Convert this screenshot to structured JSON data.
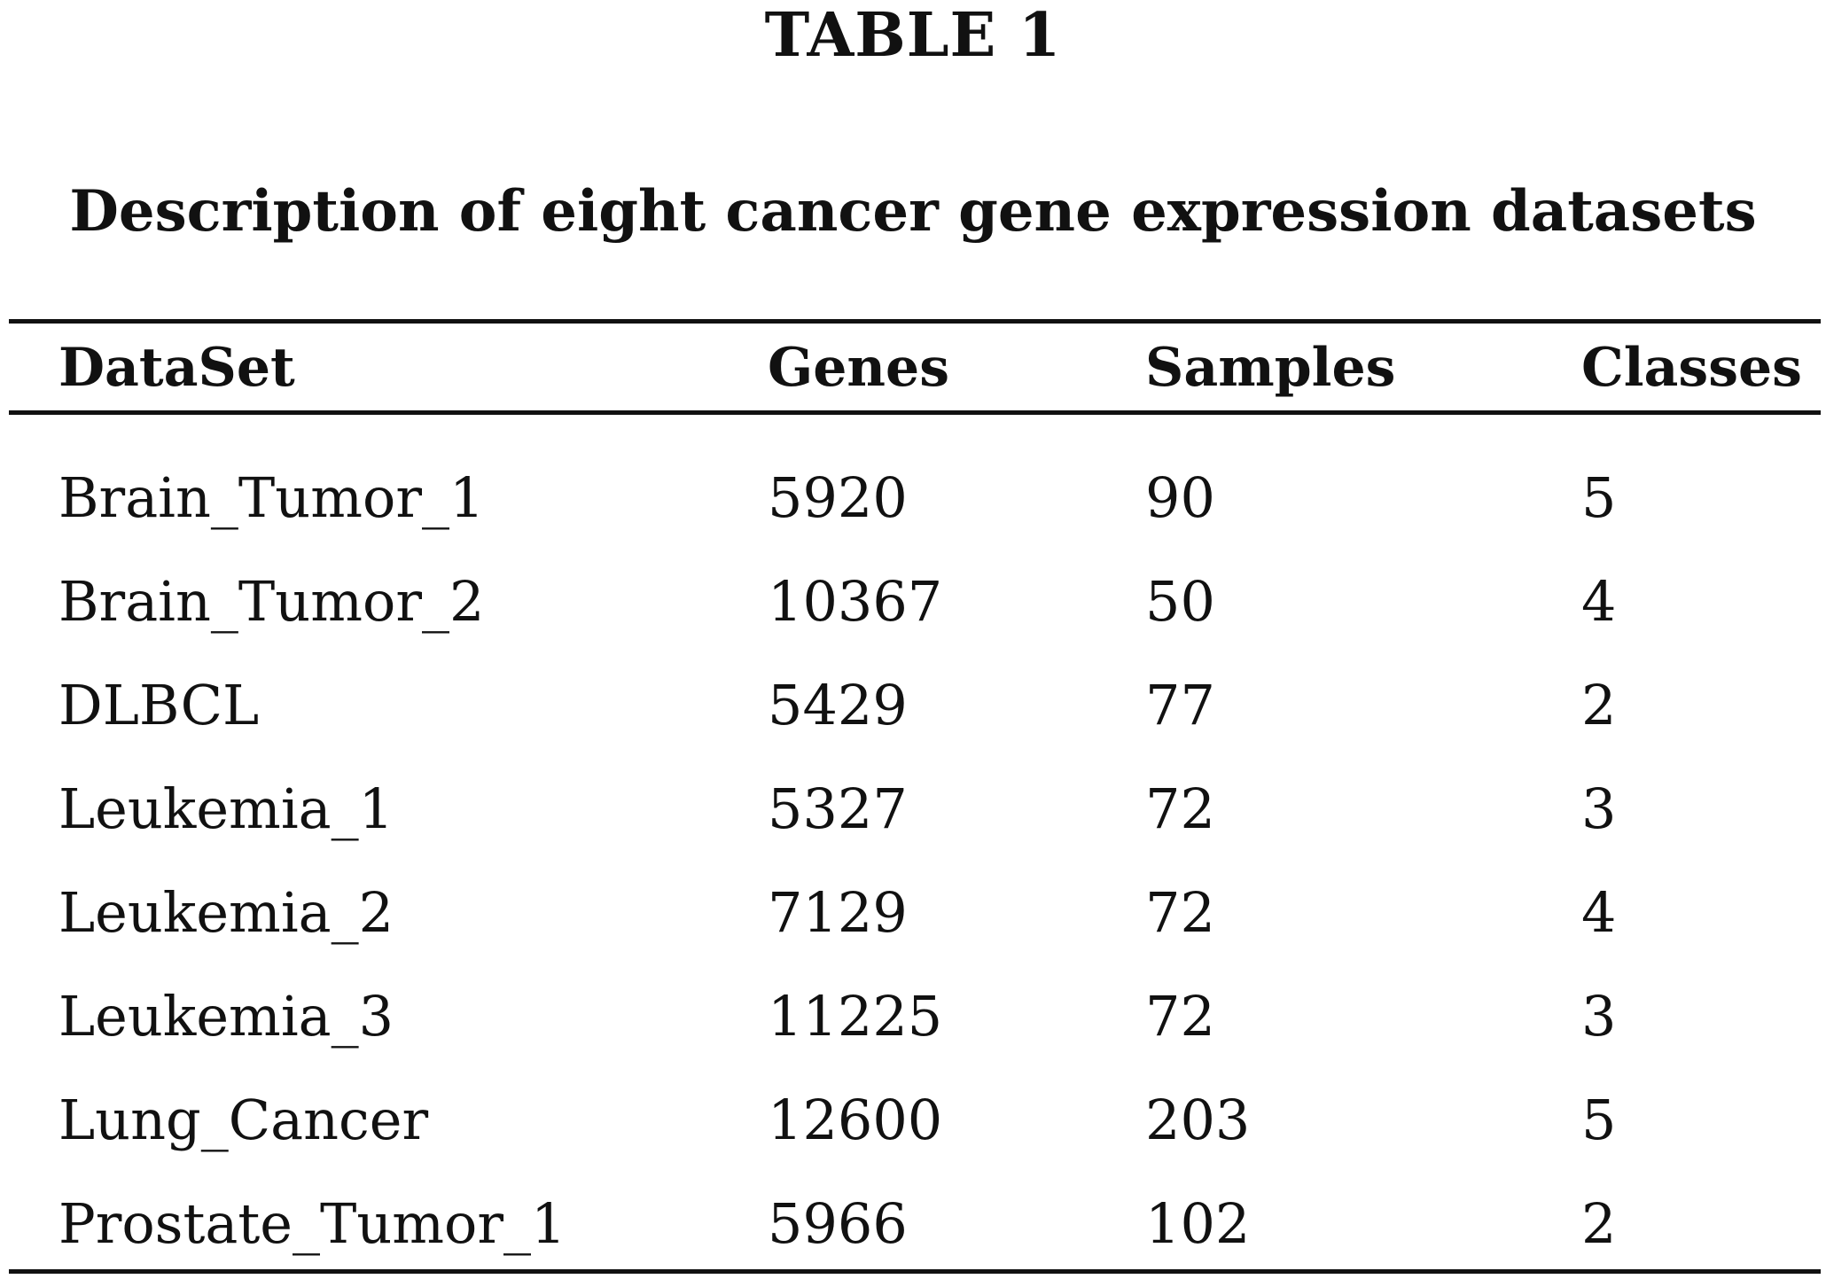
{
  "table_label": "TABLE 1",
  "caption": "Description of eight cancer gene expression datasets",
  "columns": [
    "DataSet",
    "Genes",
    "Samples",
    "Classes"
  ],
  "rows": [
    [
      "Brain_Tumor_1",
      "5920",
      "90",
      "5"
    ],
    [
      "Brain_Tumor_2",
      "10367",
      "50",
      "4"
    ],
    [
      "DLBCL",
      "5429",
      "77",
      "2"
    ],
    [
      "Leukemia_1",
      "5327",
      "72",
      "3"
    ],
    [
      "Leukemia_2",
      "7129",
      "72",
      "4"
    ],
    [
      "Leukemia_3",
      "11225",
      "72",
      "3"
    ],
    [
      "Lung_Cancer",
      "12600",
      "203",
      "5"
    ],
    [
      "Prostate_Tumor_1",
      "5966",
      "102",
      "2"
    ]
  ]
}
